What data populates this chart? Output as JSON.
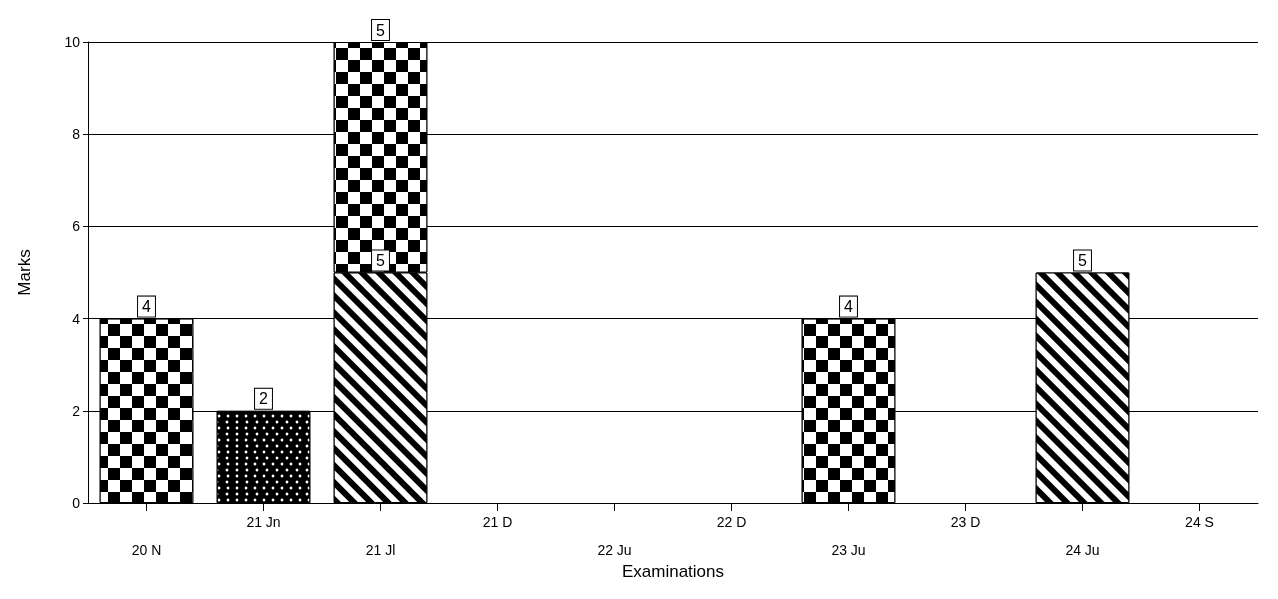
{
  "chart_data": {
    "type": "bar",
    "xlabel": "Examinations",
    "ylabel": "Marks",
    "categories": [
      "20 N",
      "21 Jn",
      "21 Jl",
      "21 D",
      "22 Ju",
      "22 D",
      "23 Ju",
      "23 D",
      "24 Ju",
      "24 S"
    ],
    "series": [
      {
        "color": "#000000",
        "values": [
          null,
          null,
          5,
          null,
          null,
          null,
          null,
          null,
          5,
          null
        ]
      },
      {
        "color": "#000000",
        "values": [
          4,
          null,
          5,
          null,
          null,
          null,
          4,
          null,
          null,
          null
        ]
      },
      {
        "color": "#000000",
        "values": [
          null,
          2,
          null,
          null,
          null,
          null,
          null,
          null,
          null,
          null
        ]
      }
    ],
    "stacked": true,
    "ylim": [
      0,
      10
    ],
    "yticks": [
      0,
      2,
      4,
      6,
      8,
      10
    ],
    "grid": "y",
    "data_labels": true
  }
}
